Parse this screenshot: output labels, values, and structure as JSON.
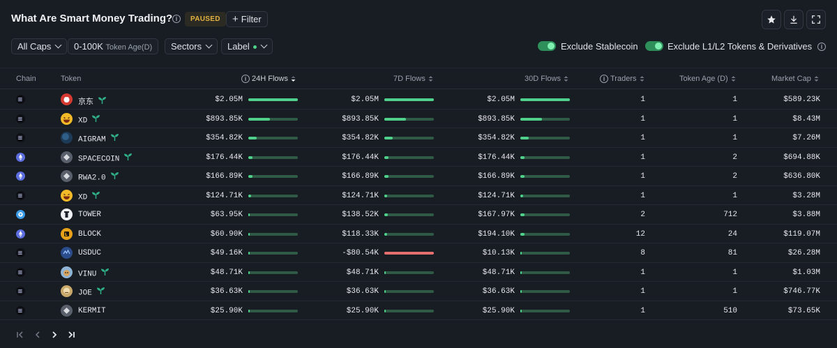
{
  "header": {
    "title": "What Are Smart Money Trading?",
    "status_badge": "PAUSED",
    "filter_label": "Filter",
    "filter_icon": "plus-icon",
    "actions": [
      "star-icon",
      "download-icon",
      "fullscreen-icon"
    ]
  },
  "filters": {
    "caps": "All Caps",
    "token_age_value": "0-100K",
    "token_age_label": "Token Age(D)",
    "sectors": "Sectors",
    "label": "Label",
    "exclude_stablecoin": "Exclude Stablecoin",
    "exclude_l1l2": "Exclude L1/L2 Tokens & Derivatives"
  },
  "columns": {
    "chain": "Chain",
    "token": "Token",
    "flows_24h": "24H Flows",
    "flows_7d": "7D Flows",
    "flows_30d": "30D Flows",
    "traders": "Traders",
    "token_age": "Token Age (D)",
    "market_cap": "Market Cap"
  },
  "colors": {
    "positive": "#4fd18b",
    "negative": "#e36f6f",
    "badge": "#e3b341"
  },
  "rows": [
    {
      "chain": "solana",
      "token": "京东",
      "icon": "jd-logo-icon",
      "sprout": true,
      "f24": "$2.05M",
      "f24_frac": 1.0,
      "f7": "$2.05M",
      "f7_frac": 1.0,
      "f7_neg": false,
      "f30": "$2.05M",
      "f30_frac": 1.0,
      "traders": "1",
      "age": "1",
      "mcap": "$589.23K"
    },
    {
      "chain": "solana",
      "token": "XD",
      "icon": "grin-face-icon",
      "sprout": true,
      "f24": "$893.85K",
      "f24_frac": 0.44,
      "f7": "$893.85K",
      "f7_frac": 0.44,
      "f7_neg": false,
      "f30": "$893.85K",
      "f30_frac": 0.44,
      "traders": "1",
      "age": "1",
      "mcap": "$8.43M"
    },
    {
      "chain": "solana",
      "token": "AIGRAM",
      "icon": "aigram-logo-icon",
      "sprout": true,
      "f24": "$354.82K",
      "f24_frac": 0.17,
      "f7": "$354.82K",
      "f7_frac": 0.17,
      "f7_neg": false,
      "f30": "$354.82K",
      "f30_frac": 0.17,
      "traders": "1",
      "age": "1",
      "mcap": "$7.26M"
    },
    {
      "chain": "ethereum",
      "token": "SPACECOIN",
      "icon": "generic-token-icon",
      "sprout": true,
      "f24": "$176.44K",
      "f24_frac": 0.09,
      "f7": "$176.44K",
      "f7_frac": 0.09,
      "f7_neg": false,
      "f30": "$176.44K",
      "f30_frac": 0.09,
      "traders": "1",
      "age": "2",
      "mcap": "$694.88K"
    },
    {
      "chain": "ethereum",
      "token": "RWA2.0",
      "icon": "generic-token-icon",
      "sprout": true,
      "f24": "$166.89K",
      "f24_frac": 0.08,
      "f7": "$166.89K",
      "f7_frac": 0.08,
      "f7_neg": false,
      "f30": "$166.89K",
      "f30_frac": 0.08,
      "traders": "1",
      "age": "2",
      "mcap": "$636.80K"
    },
    {
      "chain": "solana",
      "token": "XD",
      "icon": "grin-face-icon",
      "sprout": true,
      "f24": "$124.71K",
      "f24_frac": 0.06,
      "f7": "$124.71K",
      "f7_frac": 0.06,
      "f7_neg": false,
      "f30": "$124.71K",
      "f30_frac": 0.06,
      "traders": "1",
      "age": "1",
      "mcap": "$3.28M"
    },
    {
      "chain": "ton",
      "token": "TOWER",
      "icon": "tower-logo-icon",
      "sprout": false,
      "f24": "$63.95K",
      "f24_frac": 0.03,
      "f7": "$138.52K",
      "f7_frac": 0.07,
      "f7_neg": false,
      "f30": "$167.97K",
      "f30_frac": 0.08,
      "traders": "2",
      "age": "712",
      "mcap": "$3.88M"
    },
    {
      "chain": "ethereum",
      "token": "BLOCK",
      "icon": "block-logo-icon",
      "sprout": false,
      "f24": "$60.90K",
      "f24_frac": 0.03,
      "f7": "$118.33K",
      "f7_frac": 0.06,
      "f7_neg": false,
      "f30": "$194.10K",
      "f30_frac": 0.09,
      "traders": "12",
      "age": "24",
      "mcap": "$119.07M"
    },
    {
      "chain": "solana",
      "token": "USDUC",
      "icon": "usduc-logo-icon",
      "sprout": false,
      "f24": "$49.16K",
      "f24_frac": 0.02,
      "f7": "-$80.54K",
      "f7_frac": 1.0,
      "f7_neg": true,
      "f30": "$10.13K",
      "f30_frac": 0.01,
      "traders": "8",
      "age": "81",
      "mcap": "$26.28M"
    },
    {
      "chain": "solana",
      "token": "VINU",
      "icon": "vinu-logo-icon",
      "sprout": true,
      "f24": "$48.71K",
      "f24_frac": 0.02,
      "f7": "$48.71K",
      "f7_frac": 0.02,
      "f7_neg": false,
      "f30": "$48.71K",
      "f30_frac": 0.02,
      "traders": "1",
      "age": "1",
      "mcap": "$1.03M"
    },
    {
      "chain": "solana",
      "token": "JOE",
      "icon": "joe-logo-icon",
      "sprout": true,
      "f24": "$36.63K",
      "f24_frac": 0.02,
      "f7": "$36.63K",
      "f7_frac": 0.02,
      "f7_neg": false,
      "f30": "$36.63K",
      "f30_frac": 0.02,
      "traders": "1",
      "age": "1",
      "mcap": "$746.77K"
    },
    {
      "chain": "solana",
      "token": "KERMIT",
      "icon": "generic-token-icon",
      "sprout": false,
      "f24": "$25.90K",
      "f24_frac": 0.01,
      "f7": "$25.90K",
      "f7_frac": 0.01,
      "f7_neg": false,
      "f30": "$25.90K",
      "f30_frac": 0.01,
      "traders": "1",
      "age": "510",
      "mcap": "$73.65K"
    }
  ],
  "pagination": {
    "first": "first-page-icon",
    "prev": "prev-page-icon",
    "next": "next-page-icon",
    "last": "last-page-icon"
  }
}
